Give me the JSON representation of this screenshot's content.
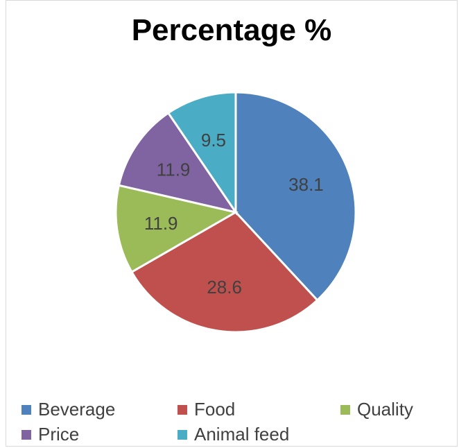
{
  "chart_data": {
    "type": "pie",
    "title": "Percentage %",
    "categories": [
      "Beverage",
      "Food",
      "Quality",
      "Price",
      "Animal feed"
    ],
    "values": [
      38.1,
      28.6,
      11.9,
      11.9,
      9.5
    ],
    "colors": [
      "#4f81bd",
      "#c0504d",
      "#9bbb59",
      "#8064a2",
      "#4bacc6"
    ],
    "data_labels": [
      "38.1",
      "28.6",
      "11.9",
      "11.9",
      "9.5"
    ],
    "legend_position": "bottom"
  }
}
